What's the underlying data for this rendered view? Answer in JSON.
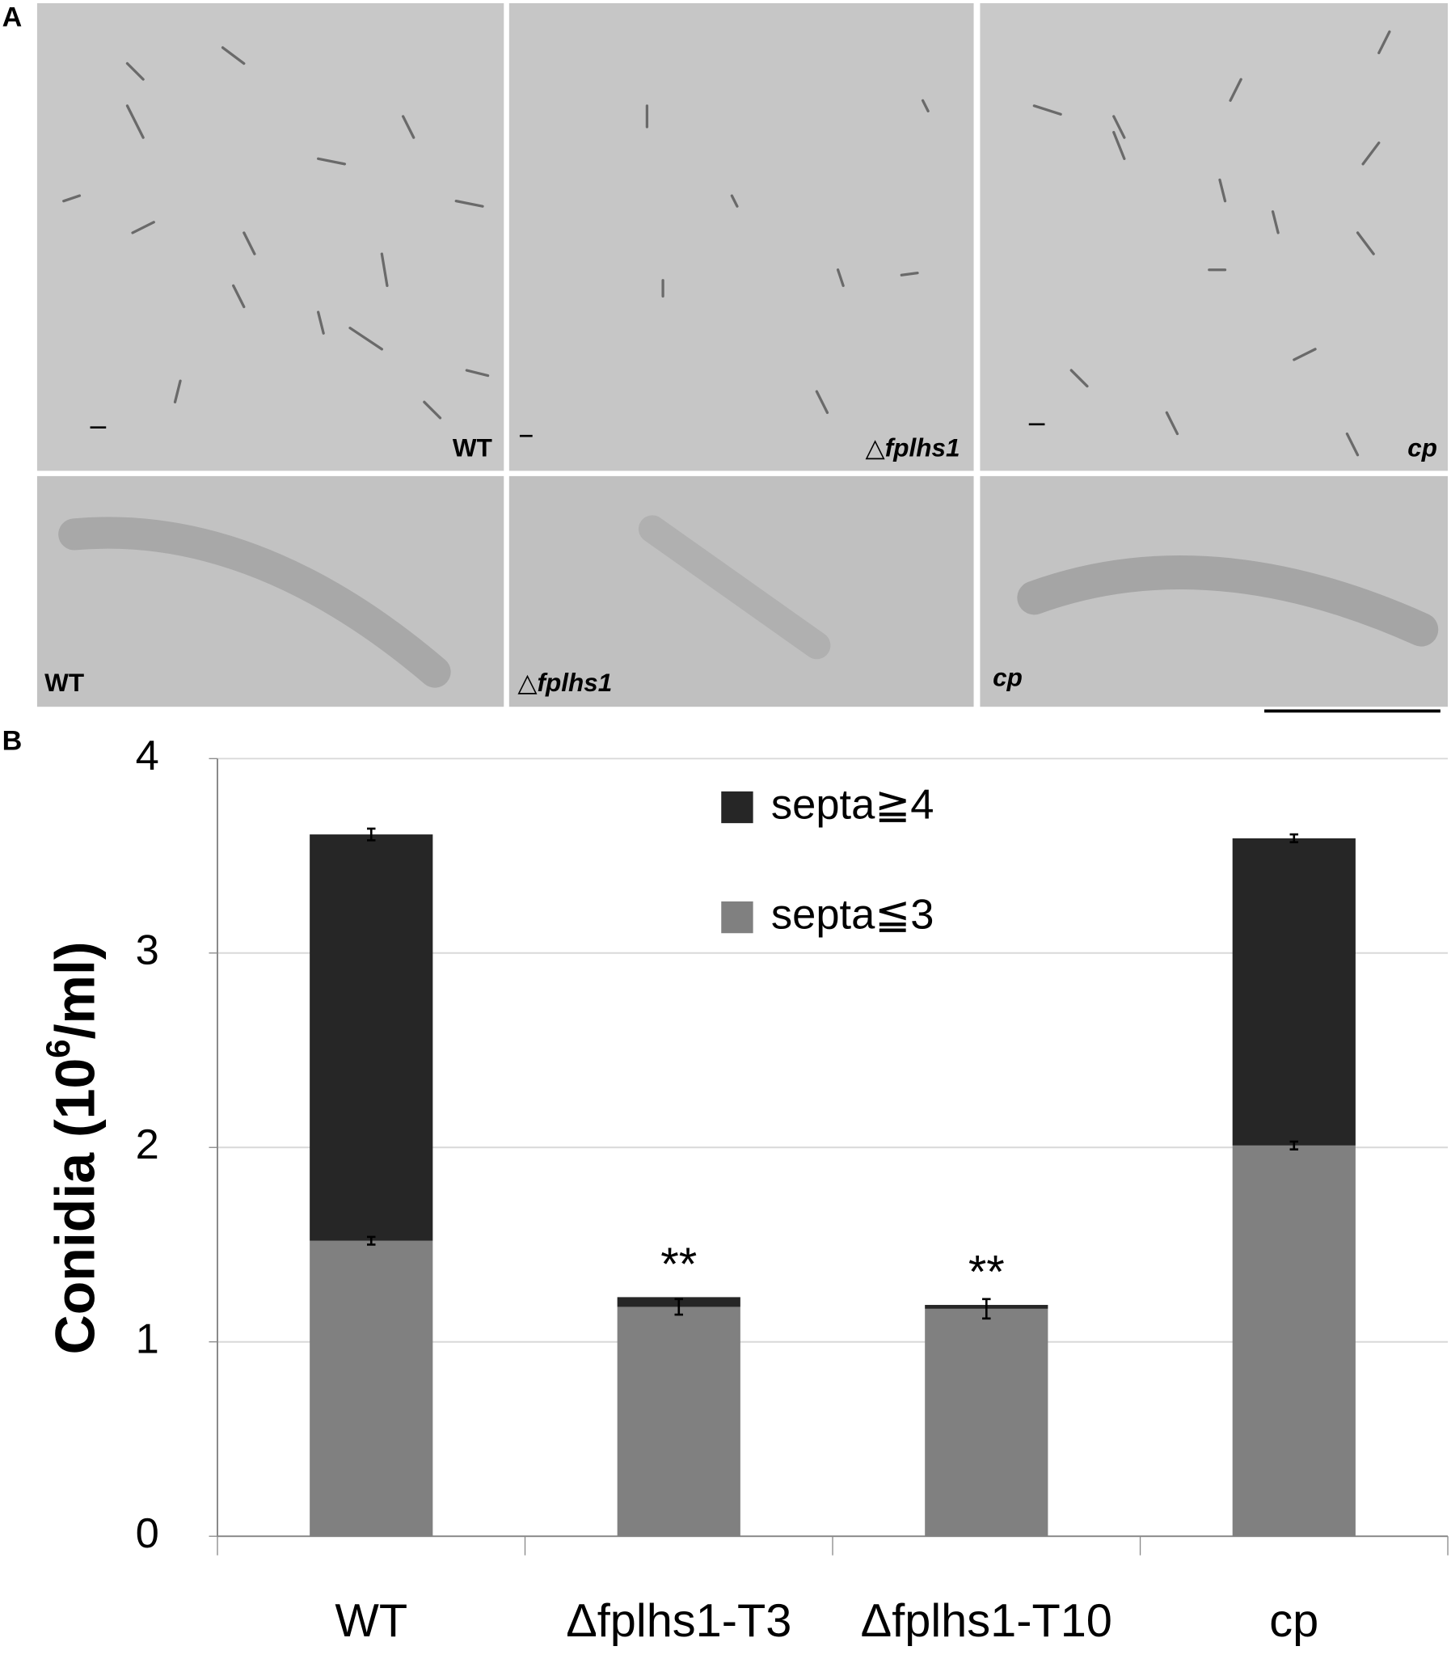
{
  "panel_a": {
    "label": "A",
    "top_labels": [
      "WT",
      "△fplhs1",
      "cp"
    ],
    "bottom_labels": [
      "WT",
      "△fplhs1",
      "cp"
    ]
  },
  "chart_data": {
    "type": "stacked_bar",
    "label": "B",
    "y_label": "Conidia (10",
    "y_label_sup": "6",
    "y_label_end": "/ml)",
    "categories": [
      "WT",
      "Δfplhs1-T3",
      "Δfplhs1-T10",
      "cp"
    ],
    "series": [
      {
        "name": "septa≦3",
        "color": "#808080",
        "values": [
          1.52,
          1.18,
          1.17,
          2.01
        ],
        "errors": [
          0.02,
          0.04,
          0.05,
          0.02
        ]
      },
      {
        "name": "septa≧4",
        "color": "#262626",
        "values": [
          2.09,
          0.05,
          0.02,
          1.58
        ],
        "errors": [
          0.03,
          null,
          null,
          0.02
        ]
      }
    ],
    "significance": [
      null,
      "**",
      "**",
      null
    ],
    "ylim": [
      0,
      4
    ],
    "yticks": [
      0,
      1,
      2,
      3,
      4
    ],
    "grid": true
  }
}
